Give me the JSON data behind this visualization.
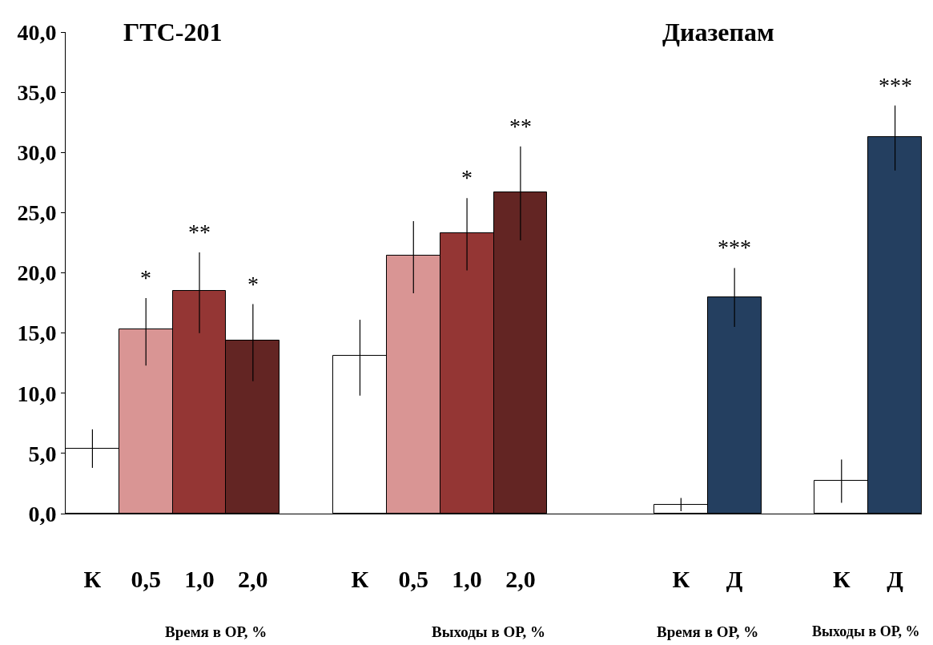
{
  "chart_data": {
    "type": "bar",
    "categories": [
      "К",
      "0,5",
      "1,0",
      "2,0",
      null,
      "К",
      "0,5",
      "1,0",
      "2,0",
      null,
      null,
      "К",
      "Д",
      null,
      "К",
      "Д"
    ],
    "values": [
      5.4,
      15.3,
      18.5,
      14.4,
      null,
      13.1,
      21.4,
      23.3,
      26.7,
      null,
      null,
      0.7,
      18.0,
      null,
      2.7,
      31.3
    ],
    "colors": [
      "#ffffff",
      "#d99594",
      "#943634",
      "#632523",
      "#ffffff",
      "#ffffff",
      "#d99594",
      "#943634",
      "#632523",
      "#ffffff",
      "#ffffff",
      "#ffffff",
      "#243f60",
      "#ffffff",
      "#ffffff",
      "#243f60"
    ],
    "errors": [
      [
        3.8,
        7.0
      ],
      [
        12.3,
        17.9
      ],
      [
        15.0,
        21.7
      ],
      [
        11.0,
        17.4
      ],
      null,
      [
        9.8,
        16.1
      ],
      [
        18.3,
        24.3
      ],
      [
        20.2,
        26.2
      ],
      [
        22.7,
        30.5
      ],
      null,
      null,
      [
        0.2,
        1.3
      ],
      [
        15.5,
        20.4
      ],
      null,
      [
        0.9,
        4.5
      ],
      [
        28.5,
        33.9
      ]
    ],
    "value_labels": [
      null,
      "*",
      "**",
      "*",
      null,
      null,
      null,
      "*",
      "**",
      null,
      null,
      null,
      "***",
      null,
      null,
      "***"
    ],
    "ylim": [
      0,
      40
    ],
    "yticks": [
      {
        "value": 0,
        "label": "0,0"
      },
      {
        "value": 5,
        "label": "5,0"
      },
      {
        "value": 10,
        "label": "10,0"
      },
      {
        "value": 15,
        "label": "15,0"
      },
      {
        "value": 20,
        "label": "20,0"
      },
      {
        "value": 25,
        "label": "25,0"
      },
      {
        "value": 30,
        "label": "30,0"
      },
      {
        "value": 35,
        "label": "35,0"
      },
      {
        "value": 40,
        "label": "40,0"
      }
    ],
    "grid": false,
    "annotations": [
      "ГТС-201",
      "Диазепам",
      "Время в ОР, %",
      "Выходы в ОР, %",
      "Время в ОР, %",
      "Выходы в ОР, %"
    ]
  }
}
